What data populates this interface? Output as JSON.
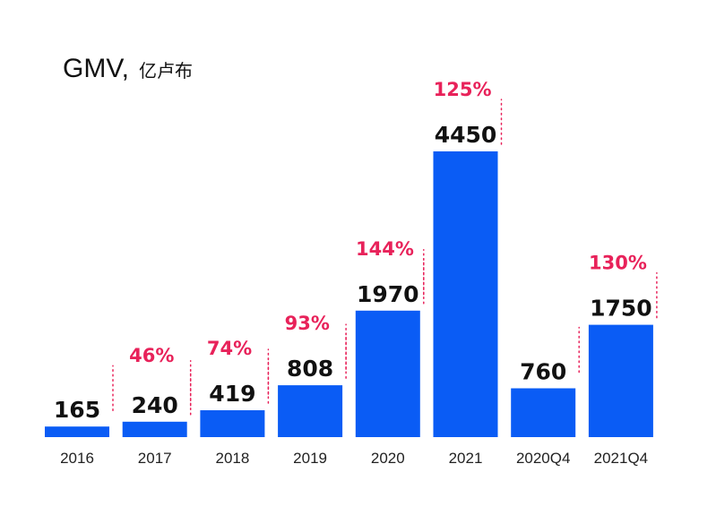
{
  "chart_data": {
    "type": "bar",
    "title": "GMV,",
    "title_unit": "亿卢布",
    "categories": [
      "2016",
      "2017",
      "2018",
      "2019",
      "2020",
      "2021",
      "2020Q4",
      "2021Q4"
    ],
    "values": [
      165,
      240,
      419,
      808,
      1970,
      4450,
      760,
      1750
    ],
    "ylim": [
      0,
      4450
    ],
    "grid": false,
    "growth_annotations": [
      {
        "from": "2016",
        "to": "2017",
        "label": "46%"
      },
      {
        "from": "2017",
        "to": "2018",
        "label": "74%"
      },
      {
        "from": "2018",
        "to": "2019",
        "label": "93%"
      },
      {
        "from": "2019",
        "to": "2020",
        "label": "144%"
      },
      {
        "from": "2020",
        "to": "2021",
        "label": "125%"
      },
      {
        "from": "2020Q4",
        "to": "2021Q4",
        "label": "130%"
      }
    ],
    "colors": {
      "bar": "#0a5cf5",
      "growth": "#e8225a",
      "text": "#111111"
    }
  }
}
